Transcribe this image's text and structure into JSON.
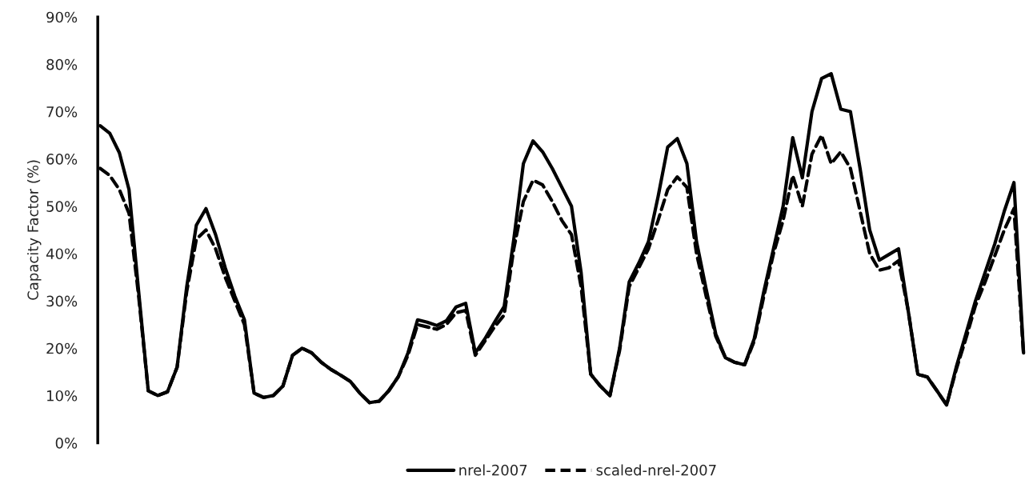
{
  "chart_data": {
    "type": "line",
    "ylabel": "Capacity Factor (%)",
    "categories": [
      null,
      null,
      null,
      null,
      null,
      null,
      null,
      null,
      null,
      null,
      null,
      null,
      null,
      null,
      null,
      null,
      null,
      null,
      null,
      null,
      null,
      null,
      null,
      null,
      null,
      null,
      null,
      null,
      null,
      null,
      null,
      null,
      null,
      null,
      null,
      null,
      null,
      null,
      null,
      null,
      null,
      null,
      null,
      null,
      null,
      null,
      null,
      null,
      null,
      null,
      null,
      null,
      null,
      null,
      null,
      null,
      null,
      null,
      null,
      null,
      null,
      null,
      null,
      null,
      null,
      null,
      null,
      null,
      null,
      null,
      null,
      null,
      null,
      null,
      null,
      null,
      null,
      null,
      null,
      null,
      null,
      null,
      null,
      null,
      null,
      null,
      null,
      null,
      null,
      null,
      null,
      null,
      null,
      null,
      null,
      null,
      null
    ],
    "series": [
      {
        "name": "nrel-2007",
        "color": "#000000",
        "line_style": "solid",
        "values": [
          67,
          65.4,
          61.3,
          53.5,
          32,
          11,
          10,
          10.8,
          16,
          33,
          46,
          49.5,
          44,
          37,
          31,
          26,
          10.5,
          9.6,
          10,
          12,
          18.5,
          20,
          19,
          17,
          15.5,
          14.3,
          13,
          10.5,
          8.5,
          8.8,
          11,
          14,
          19,
          26,
          25.5,
          24.8,
          25.8,
          28.7,
          29.5,
          19,
          22,
          25.5,
          28.8,
          43,
          59,
          63.8,
          61.5,
          58,
          54,
          50,
          36,
          14.5,
          12,
          10,
          20,
          34,
          38,
          42.5,
          52,
          62.5,
          64.3,
          59,
          42.5,
          32.5,
          23,
          18,
          17,
          16.5,
          22,
          32,
          41,
          50,
          64.5,
          56,
          70,
          77,
          78,
          70.5,
          70,
          58,
          45,
          38.6,
          39.8,
          41,
          28,
          14.5,
          13.9,
          11,
          8,
          16,
          23,
          30,
          36,
          42,
          49,
          55,
          19
        ]
      },
      {
        "name": "scaled-nrel-2007",
        "color": "#000000",
        "line_style": "dashed",
        "values": [
          58,
          56.5,
          53.5,
          48.5,
          31,
          11,
          10,
          10.8,
          16,
          32,
          43,
          45,
          41,
          35,
          30,
          25,
          10.5,
          9.6,
          10,
          12,
          18.5,
          20,
          19,
          17,
          15.5,
          14.3,
          13,
          10.5,
          8.5,
          8.8,
          11,
          14,
          18.5,
          25,
          24.5,
          24,
          25,
          27.5,
          28,
          18.5,
          21.5,
          24.5,
          27,
          41,
          51,
          55.5,
          54.5,
          51,
          47,
          44,
          33,
          14.5,
          12,
          10,
          19.5,
          33,
          37,
          41,
          47,
          53.5,
          56.2,
          54,
          40,
          31,
          22.5,
          18,
          17,
          16.5,
          21.5,
          31,
          40,
          47,
          56.5,
          50,
          61,
          65,
          59,
          61.5,
          58,
          49,
          40,
          36.5,
          37,
          38.5,
          28,
          14.5,
          13.9,
          11,
          8,
          15.5,
          22,
          29,
          34,
          39.5,
          45,
          49.5,
          18.5
        ]
      }
    ],
    "ylim": [
      0,
      90
    ],
    "yticks": [
      {
        "value": 0,
        "label": "0%"
      },
      {
        "value": 10,
        "label": "10%"
      },
      {
        "value": 20,
        "label": "20%"
      },
      {
        "value": 30,
        "label": "30%"
      },
      {
        "value": 40,
        "label": "40%"
      },
      {
        "value": 50,
        "label": "50%"
      },
      {
        "value": 60,
        "label": "60%"
      },
      {
        "value": 70,
        "label": "70%"
      },
      {
        "value": 80,
        "label": "80%"
      },
      {
        "value": 90,
        "label": "90%"
      }
    ],
    "grid": false,
    "legend": "bottom",
    "marker": "none"
  }
}
